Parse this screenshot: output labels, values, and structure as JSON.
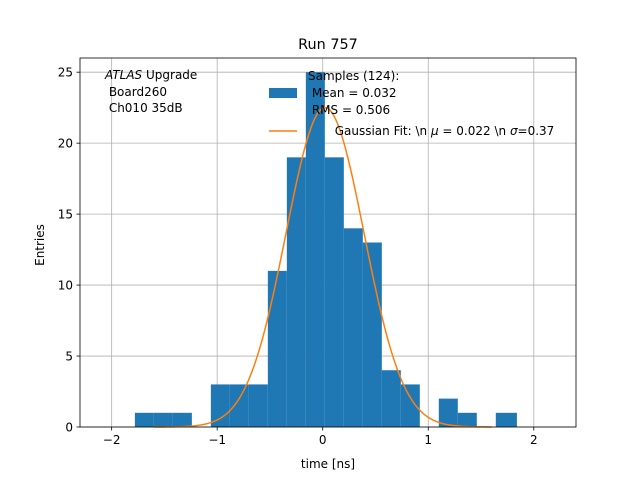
{
  "chart_data": {
    "type": "bar",
    "title": "Run 757",
    "xlabel": "time [ns]",
    "ylabel": "Entries",
    "xlim": [
      -2.3,
      2.4
    ],
    "ylim": [
      0,
      26
    ],
    "xticks": [
      -2,
      -1,
      0,
      1,
      2
    ],
    "yticks": [
      0,
      5,
      10,
      15,
      20,
      25
    ],
    "grid": true,
    "legend_position": "upper-right",
    "annotation": {
      "italic_part": "ATLAS",
      "line1_rest": " Upgrade",
      "line2": " Board260",
      "line3": " Ch010 35dB"
    },
    "bar_color": "#1f77b4",
    "fit_color": "#ff7f0e",
    "histogram": {
      "bin_edges": [
        -1.78,
        -1.6,
        -1.42,
        -1.24,
        -1.06,
        -0.88,
        -0.7,
        -0.52,
        -0.34,
        -0.16,
        0.02,
        0.2,
        0.38,
        0.56,
        0.74,
        0.92,
        1.1,
        1.28,
        1.46,
        1.64,
        1.84
      ],
      "counts": [
        1,
        1,
        1,
        0,
        3,
        3,
        3,
        11,
        19,
        25,
        19,
        14,
        13,
        4,
        3,
        0,
        2,
        1,
        0,
        1
      ]
    },
    "fit": {
      "type": "gaussian",
      "mu": 0.022,
      "sigma": 0.37,
      "amplitude": 22.5,
      "x_range": [
        -1.6,
        1.6
      ]
    },
    "legend": {
      "hist_lines": [
        "Samples (124):",
        " Mean = 0.032",
        " RMS = 0.506"
      ],
      "fit_prefix": "Gaussian Fit: \\n ",
      "fit_mu_symbol": "μ",
      "fit_middle": " = 0.022 \\n ",
      "fit_sigma_symbol": "σ",
      "fit_suffix": "=0.37"
    }
  }
}
